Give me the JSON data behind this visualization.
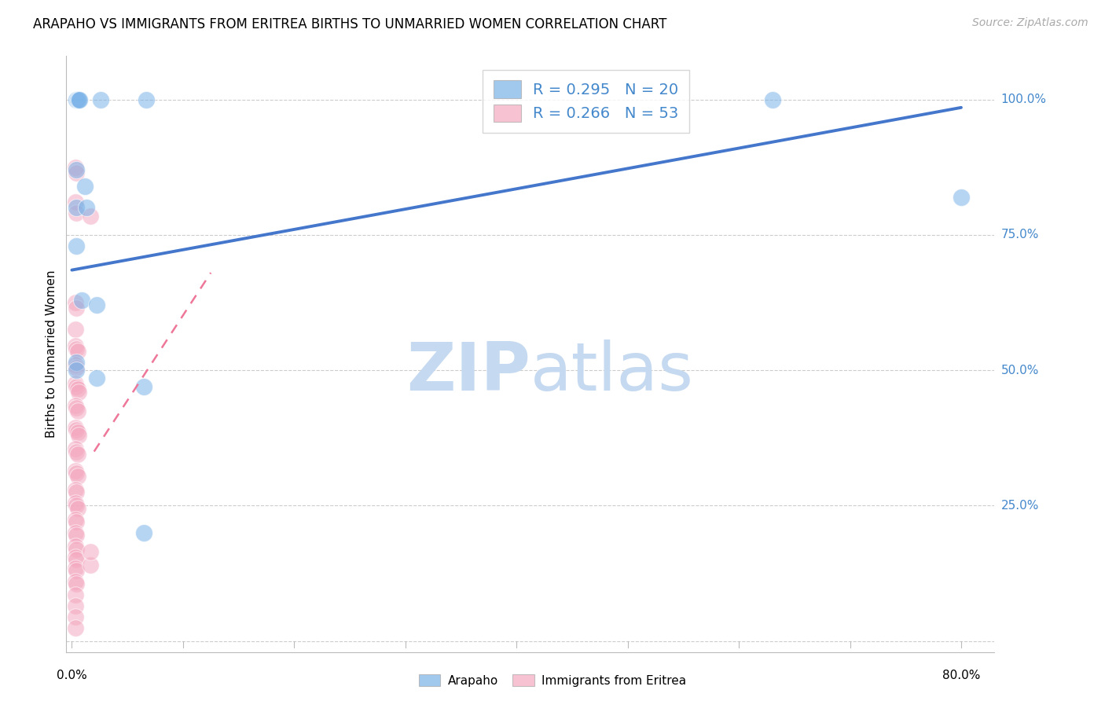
{
  "title": "ARAPAHO VS IMMIGRANTS FROM ERITREA BIRTHS TO UNMARRIED WOMEN CORRELATION CHART",
  "source": "Source: ZipAtlas.com",
  "ylabel": "Births to Unmarried Women",
  "xlim": [
    -0.005,
    0.83
  ],
  "ylim": [
    -0.02,
    1.08
  ],
  "yticks": [
    0.0,
    0.25,
    0.5,
    0.75,
    1.0
  ],
  "ytick_labels": [
    "",
    "25.0%",
    "50.0%",
    "75.0%",
    "100.0%"
  ],
  "xtick_labels_pos": [
    0.0,
    0.8
  ],
  "xtick_labels_text": [
    "0.0%",
    "80.0%"
  ],
  "grid_color": "#cccccc",
  "background_color": "#ffffff",
  "arapaho_color": "#7ab3e8",
  "eritrea_color": "#f4a8c0",
  "arapaho_line_color": "#4477cc",
  "eritrea_line_color": "#ee7799",
  "axis_label_color": "#4488cc",
  "legend_R_arapaho": "R = 0.295",
  "legend_N_arapaho": "N = 20",
  "legend_R_eritrea": "R = 0.266",
  "legend_N_eritrea": "N = 53",
  "arapaho_trend_x": [
    0.0,
    0.8
  ],
  "arapaho_trend_y": [
    0.685,
    0.985
  ],
  "eritrea_trend_x": [
    0.02,
    0.125
  ],
  "eritrea_trend_y": [
    0.35,
    0.68
  ],
  "arapaho_points": [
    [
      0.004,
      1.0
    ],
    [
      0.005,
      1.0
    ],
    [
      0.006,
      1.0
    ],
    [
      0.007,
      1.0
    ],
    [
      0.026,
      1.0
    ],
    [
      0.067,
      1.0
    ],
    [
      0.004,
      0.87
    ],
    [
      0.012,
      0.84
    ],
    [
      0.004,
      0.8
    ],
    [
      0.013,
      0.8
    ],
    [
      0.004,
      0.73
    ],
    [
      0.009,
      0.63
    ],
    [
      0.022,
      0.62
    ],
    [
      0.004,
      0.515
    ],
    [
      0.004,
      0.5
    ],
    [
      0.022,
      0.485
    ],
    [
      0.065,
      0.47
    ],
    [
      0.63,
      1.0
    ],
    [
      0.8,
      0.82
    ],
    [
      0.065,
      0.2
    ]
  ],
  "eritrea_points": [
    [
      0.003,
      0.875
    ],
    [
      0.004,
      0.865
    ],
    [
      0.003,
      0.81
    ],
    [
      0.004,
      0.79
    ],
    [
      0.017,
      0.785
    ],
    [
      0.003,
      0.625
    ],
    [
      0.004,
      0.615
    ],
    [
      0.003,
      0.575
    ],
    [
      0.003,
      0.545
    ],
    [
      0.004,
      0.54
    ],
    [
      0.005,
      0.535
    ],
    [
      0.003,
      0.51
    ],
    [
      0.004,
      0.505
    ],
    [
      0.003,
      0.475
    ],
    [
      0.004,
      0.47
    ],
    [
      0.005,
      0.465
    ],
    [
      0.006,
      0.46
    ],
    [
      0.003,
      0.435
    ],
    [
      0.004,
      0.43
    ],
    [
      0.005,
      0.425
    ],
    [
      0.003,
      0.395
    ],
    [
      0.004,
      0.39
    ],
    [
      0.005,
      0.385
    ],
    [
      0.006,
      0.38
    ],
    [
      0.003,
      0.355
    ],
    [
      0.004,
      0.35
    ],
    [
      0.005,
      0.345
    ],
    [
      0.003,
      0.315
    ],
    [
      0.004,
      0.31
    ],
    [
      0.005,
      0.305
    ],
    [
      0.003,
      0.28
    ],
    [
      0.004,
      0.275
    ],
    [
      0.003,
      0.255
    ],
    [
      0.004,
      0.25
    ],
    [
      0.005,
      0.245
    ],
    [
      0.003,
      0.225
    ],
    [
      0.004,
      0.22
    ],
    [
      0.003,
      0.2
    ],
    [
      0.004,
      0.195
    ],
    [
      0.003,
      0.175
    ],
    [
      0.004,
      0.17
    ],
    [
      0.003,
      0.155
    ],
    [
      0.004,
      0.15
    ],
    [
      0.003,
      0.135
    ],
    [
      0.004,
      0.13
    ],
    [
      0.017,
      0.14
    ],
    [
      0.003,
      0.11
    ],
    [
      0.004,
      0.105
    ],
    [
      0.003,
      0.085
    ],
    [
      0.003,
      0.065
    ],
    [
      0.003,
      0.045
    ],
    [
      0.003,
      0.025
    ],
    [
      0.017,
      0.165
    ]
  ],
  "watermark_zip": "ZIP",
  "watermark_atlas": "atlas",
  "watermark_color": "#c5d9f0",
  "watermark_fontsize": 62,
  "title_fontsize": 12,
  "source_fontsize": 10,
  "ylabel_fontsize": 11,
  "tick_label_fontsize": 11,
  "legend_fontsize": 14
}
